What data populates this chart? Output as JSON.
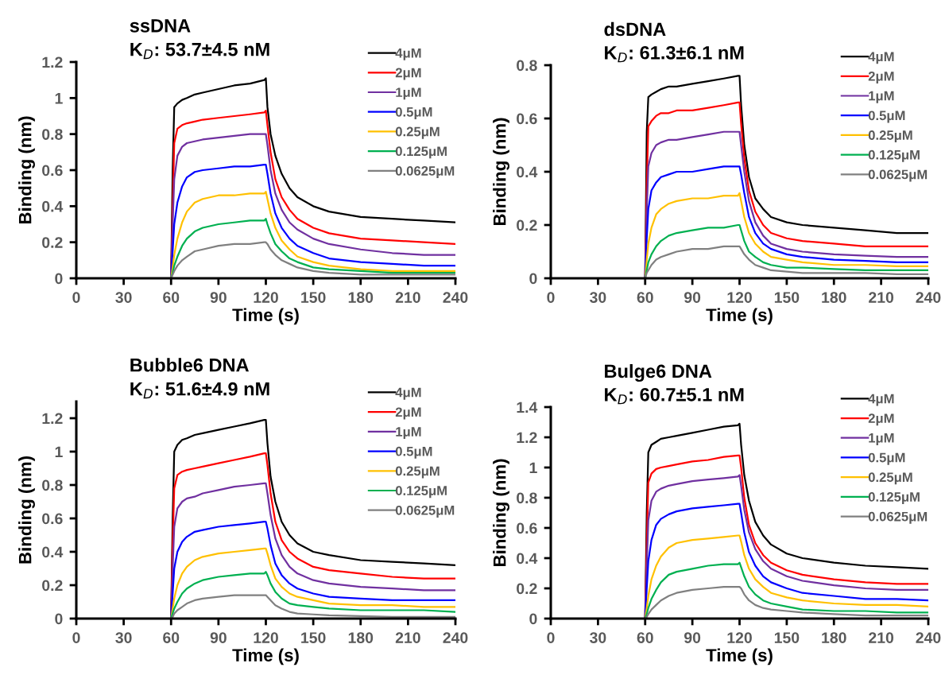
{
  "chart_data": [
    {
      "type": "line",
      "title": "ssDNA",
      "subtitle": "K$_{D}$: 53.7±4.5 nM",
      "xlabel": "Time (s)",
      "ylabel": "Binding (nm)",
      "legend": "top right",
      "grid": false,
      "x": [
        0,
        60,
        61,
        62,
        64,
        67,
        70,
        75,
        80,
        90,
        100,
        110,
        119,
        120,
        121,
        123,
        126,
        130,
        135,
        140,
        150,
        160,
        180,
        200,
        220,
        240
      ],
      "xlim": [
        0,
        240
      ],
      "xticks": [
        0,
        30,
        60,
        90,
        120,
        150,
        180,
        210,
        240
      ],
      "ylim": [
        0,
        1.2
      ],
      "yticks": [
        0,
        0.2,
        0.4,
        0.6,
        0.8,
        1,
        1.2
      ],
      "series": [
        {
          "name": "4μM",
          "color": "#000000",
          "values": [
            0,
            0,
            0.6,
            0.95,
            0.97,
            0.99,
            1.0,
            1.02,
            1.03,
            1.05,
            1.07,
            1.08,
            1.1,
            1.11,
            0.95,
            0.8,
            0.68,
            0.58,
            0.5,
            0.45,
            0.4,
            0.37,
            0.34,
            0.33,
            0.32,
            0.31
          ]
        },
        {
          "name": "2μM",
          "color": "#ff0000",
          "values": [
            0,
            0,
            0.4,
            0.75,
            0.83,
            0.85,
            0.86,
            0.87,
            0.88,
            0.89,
            0.9,
            0.91,
            0.92,
            0.93,
            0.85,
            0.7,
            0.55,
            0.45,
            0.38,
            0.33,
            0.28,
            0.25,
            0.22,
            0.21,
            0.2,
            0.19
          ]
        },
        {
          "name": "1μM",
          "color": "#7030a0",
          "values": [
            0,
            0,
            0.3,
            0.55,
            0.68,
            0.73,
            0.75,
            0.76,
            0.77,
            0.78,
            0.79,
            0.8,
            0.8,
            0.8,
            0.74,
            0.6,
            0.47,
            0.38,
            0.31,
            0.27,
            0.22,
            0.19,
            0.16,
            0.14,
            0.13,
            0.13
          ]
        },
        {
          "name": "0.5μM",
          "color": "#0000ff",
          "values": [
            0,
            0,
            0.15,
            0.3,
            0.42,
            0.51,
            0.56,
            0.59,
            0.6,
            0.61,
            0.62,
            0.62,
            0.63,
            0.63,
            0.58,
            0.47,
            0.36,
            0.28,
            0.22,
            0.18,
            0.14,
            0.11,
            0.09,
            0.08,
            0.07,
            0.07
          ]
        },
        {
          "name": "0.25μM",
          "color": "#ffc000",
          "values": [
            0,
            0,
            0.06,
            0.13,
            0.22,
            0.31,
            0.37,
            0.42,
            0.44,
            0.46,
            0.46,
            0.47,
            0.47,
            0.48,
            0.44,
            0.36,
            0.28,
            0.21,
            0.16,
            0.12,
            0.09,
            0.07,
            0.05,
            0.04,
            0.04,
            0.04
          ]
        },
        {
          "name": "0.125μM",
          "color": "#00b050",
          "values": [
            0,
            0,
            0.03,
            0.07,
            0.12,
            0.18,
            0.22,
            0.26,
            0.28,
            0.3,
            0.31,
            0.32,
            0.32,
            0.33,
            0.3,
            0.25,
            0.19,
            0.15,
            0.11,
            0.09,
            0.06,
            0.05,
            0.04,
            0.03,
            0.03,
            0.03
          ]
        },
        {
          "name": "0.0625μM",
          "color": "#808080",
          "values": [
            0,
            0,
            0.02,
            0.04,
            0.07,
            0.1,
            0.12,
            0.15,
            0.16,
            0.18,
            0.19,
            0.19,
            0.2,
            0.2,
            0.19,
            0.16,
            0.13,
            0.1,
            0.08,
            0.06,
            0.04,
            0.03,
            0.02,
            0.02,
            0.02,
            0.02
          ]
        }
      ]
    },
    {
      "type": "line",
      "title": "dsDNA",
      "subtitle": "K$_{D}$: 61.3±6.1 nM",
      "xlabel": "Time (s)",
      "ylabel": "Binding (nm)",
      "legend": "top right",
      "grid": false,
      "x": [
        0,
        60,
        61,
        62,
        64,
        67,
        70,
        75,
        80,
        90,
        100,
        110,
        119,
        120,
        121,
        123,
        126,
        130,
        135,
        140,
        150,
        160,
        180,
        200,
        220,
        240
      ],
      "xlim": [
        0,
        240
      ],
      "xticks": [
        0,
        30,
        60,
        90,
        120,
        150,
        180,
        210,
        240
      ],
      "ylim": [
        0,
        0.8
      ],
      "yticks": [
        0,
        0.2,
        0.4,
        0.6,
        0.8
      ],
      "series": [
        {
          "name": "4μM",
          "color": "#000000",
          "values": [
            0,
            0,
            0.55,
            0.68,
            0.69,
            0.7,
            0.71,
            0.72,
            0.72,
            0.73,
            0.74,
            0.75,
            0.76,
            0.76,
            0.65,
            0.5,
            0.38,
            0.3,
            0.26,
            0.23,
            0.21,
            0.2,
            0.19,
            0.18,
            0.17,
            0.17
          ]
        },
        {
          "name": "2μM",
          "color": "#ff0000",
          "values": [
            0,
            0,
            0.35,
            0.57,
            0.59,
            0.61,
            0.62,
            0.62,
            0.63,
            0.63,
            0.64,
            0.65,
            0.66,
            0.66,
            0.58,
            0.45,
            0.33,
            0.25,
            0.2,
            0.17,
            0.15,
            0.14,
            0.13,
            0.12,
            0.12,
            0.12
          ]
        },
        {
          "name": "1μM",
          "color": "#7030a0",
          "values": [
            0,
            0,
            0.25,
            0.42,
            0.47,
            0.5,
            0.51,
            0.52,
            0.52,
            0.53,
            0.54,
            0.55,
            0.55,
            0.55,
            0.5,
            0.4,
            0.29,
            0.21,
            0.16,
            0.13,
            0.11,
            0.1,
            0.09,
            0.085,
            0.08,
            0.08
          ]
        },
        {
          "name": "0.5μM",
          "color": "#0000ff",
          "values": [
            0,
            0,
            0.15,
            0.26,
            0.33,
            0.36,
            0.38,
            0.39,
            0.4,
            0.4,
            0.41,
            0.42,
            0.42,
            0.42,
            0.39,
            0.32,
            0.23,
            0.17,
            0.13,
            0.11,
            0.09,
            0.08,
            0.07,
            0.065,
            0.06,
            0.06
          ]
        },
        {
          "name": "0.25μM",
          "color": "#ffc000",
          "values": [
            0,
            0,
            0.07,
            0.13,
            0.19,
            0.24,
            0.26,
            0.28,
            0.29,
            0.3,
            0.3,
            0.31,
            0.31,
            0.32,
            0.29,
            0.23,
            0.17,
            0.13,
            0.1,
            0.08,
            0.07,
            0.06,
            0.05,
            0.05,
            0.045,
            0.045
          ]
        },
        {
          "name": "0.125μM",
          "color": "#00b050",
          "values": [
            0,
            0,
            0.03,
            0.06,
            0.09,
            0.12,
            0.14,
            0.16,
            0.17,
            0.18,
            0.19,
            0.19,
            0.2,
            0.2,
            0.18,
            0.14,
            0.1,
            0.08,
            0.06,
            0.05,
            0.04,
            0.04,
            0.035,
            0.03,
            0.03,
            0.03
          ]
        },
        {
          "name": "0.0625μM",
          "color": "#808080",
          "values": [
            0,
            0,
            0.02,
            0.03,
            0.05,
            0.07,
            0.08,
            0.09,
            0.1,
            0.11,
            0.11,
            0.12,
            0.12,
            0.12,
            0.11,
            0.09,
            0.07,
            0.05,
            0.04,
            0.03,
            0.025,
            0.02,
            0.02,
            0.02,
            0.015,
            0.015
          ]
        }
      ]
    },
    {
      "type": "line",
      "title": "Bubble6 DNA",
      "subtitle": "K$_{D}$: 51.6±4.9 nM",
      "xlabel": "Time (s)",
      "ylabel": "Binding (nm)",
      "legend": "top right",
      "grid": false,
      "x": [
        0,
        60,
        61,
        62,
        64,
        67,
        70,
        75,
        80,
        90,
        100,
        110,
        119,
        120,
        121,
        123,
        126,
        130,
        135,
        140,
        150,
        160,
        180,
        200,
        220,
        240
      ],
      "xlim": [
        0,
        240
      ],
      "xticks": [
        0,
        30,
        60,
        90,
        120,
        150,
        180,
        210,
        240
      ],
      "ylim": [
        0,
        1.3
      ],
      "yticks": [
        0,
        0.2,
        0.4,
        0.6,
        0.8,
        1,
        1.2
      ],
      "series": [
        {
          "name": "4μM",
          "color": "#000000",
          "values": [
            0,
            0,
            0.6,
            1.0,
            1.04,
            1.07,
            1.08,
            1.1,
            1.11,
            1.13,
            1.15,
            1.17,
            1.19,
            1.19,
            1.05,
            0.85,
            0.7,
            0.58,
            0.5,
            0.45,
            0.4,
            0.38,
            0.35,
            0.34,
            0.33,
            0.32
          ]
        },
        {
          "name": "2μM",
          "color": "#ff0000",
          "values": [
            0,
            0,
            0.45,
            0.78,
            0.86,
            0.88,
            0.89,
            0.9,
            0.91,
            0.93,
            0.95,
            0.97,
            0.99,
            0.99,
            0.92,
            0.75,
            0.58,
            0.47,
            0.4,
            0.36,
            0.31,
            0.29,
            0.27,
            0.25,
            0.24,
            0.24
          ]
        },
        {
          "name": "1μM",
          "color": "#7030a0",
          "values": [
            0,
            0,
            0.3,
            0.55,
            0.66,
            0.7,
            0.72,
            0.73,
            0.75,
            0.77,
            0.79,
            0.8,
            0.81,
            0.81,
            0.75,
            0.62,
            0.48,
            0.38,
            0.31,
            0.27,
            0.23,
            0.21,
            0.19,
            0.18,
            0.17,
            0.17
          ]
        },
        {
          "name": "0.5μM",
          "color": "#0000ff",
          "values": [
            0,
            0,
            0.15,
            0.3,
            0.4,
            0.46,
            0.49,
            0.52,
            0.53,
            0.55,
            0.56,
            0.57,
            0.58,
            0.58,
            0.54,
            0.44,
            0.33,
            0.26,
            0.21,
            0.18,
            0.15,
            0.13,
            0.12,
            0.11,
            0.11,
            0.11
          ]
        },
        {
          "name": "0.25μM",
          "color": "#ffc000",
          "values": [
            0,
            0,
            0.06,
            0.12,
            0.2,
            0.27,
            0.31,
            0.35,
            0.37,
            0.39,
            0.4,
            0.41,
            0.42,
            0.42,
            0.39,
            0.32,
            0.24,
            0.19,
            0.15,
            0.13,
            0.11,
            0.09,
            0.08,
            0.08,
            0.07,
            0.07
          ]
        },
        {
          "name": "0.125μM",
          "color": "#00b050",
          "values": [
            0,
            0,
            0.03,
            0.06,
            0.1,
            0.15,
            0.18,
            0.21,
            0.23,
            0.25,
            0.26,
            0.27,
            0.27,
            0.28,
            0.26,
            0.21,
            0.16,
            0.12,
            0.09,
            0.08,
            0.07,
            0.06,
            0.05,
            0.05,
            0.05,
            0.04
          ]
        },
        {
          "name": "0.0625μM",
          "color": "#808080",
          "values": [
            0,
            0,
            0.01,
            0.03,
            0.05,
            0.07,
            0.09,
            0.11,
            0.12,
            0.13,
            0.14,
            0.14,
            0.14,
            0.14,
            0.13,
            0.11,
            0.08,
            0.06,
            0.04,
            0.03,
            0.025,
            0.02,
            0.015,
            0.01,
            0.01,
            0.01
          ]
        }
      ]
    },
    {
      "type": "line",
      "title": "Bulge6 DNA",
      "subtitle": "K$_{D}$: 60.7±5.1 nM",
      "xlabel": "Time (s)",
      "ylabel": "Binding (nm)",
      "legend": "top right",
      "grid": false,
      "x": [
        0,
        60,
        61,
        62,
        64,
        67,
        70,
        75,
        80,
        90,
        100,
        110,
        119,
        120,
        121,
        123,
        126,
        130,
        135,
        140,
        150,
        160,
        180,
        200,
        220,
        240
      ],
      "xlim": [
        0,
        240
      ],
      "xticks": [
        0,
        30,
        60,
        90,
        120,
        150,
        180,
        210,
        240
      ],
      "ylim": [
        0,
        1.4
      ],
      "yticks": [
        0,
        0.2,
        0.4,
        0.6,
        0.8,
        1,
        1.2,
        1.4
      ],
      "series": [
        {
          "name": "4μM",
          "color": "#000000",
          "values": [
            0,
            0,
            0.7,
            1.1,
            1.15,
            1.17,
            1.19,
            1.2,
            1.21,
            1.23,
            1.25,
            1.27,
            1.28,
            1.29,
            1.15,
            0.95,
            0.78,
            0.64,
            0.55,
            0.49,
            0.43,
            0.4,
            0.37,
            0.35,
            0.34,
            0.33
          ]
        },
        {
          "name": "2μM",
          "color": "#ff0000",
          "values": [
            0,
            0,
            0.5,
            0.9,
            0.96,
            0.99,
            1.0,
            1.01,
            1.02,
            1.04,
            1.05,
            1.07,
            1.08,
            1.08,
            1.0,
            0.8,
            0.62,
            0.5,
            0.42,
            0.37,
            0.32,
            0.29,
            0.26,
            0.24,
            0.23,
            0.23
          ]
        },
        {
          "name": "1μM",
          "color": "#7030a0",
          "values": [
            0,
            0,
            0.35,
            0.65,
            0.78,
            0.84,
            0.86,
            0.88,
            0.89,
            0.91,
            0.92,
            0.93,
            0.94,
            0.95,
            0.88,
            0.72,
            0.57,
            0.46,
            0.38,
            0.33,
            0.28,
            0.25,
            0.22,
            0.2,
            0.19,
            0.19
          ]
        },
        {
          "name": "0.5μM",
          "color": "#0000ff",
          "values": [
            0,
            0,
            0.2,
            0.38,
            0.52,
            0.62,
            0.66,
            0.69,
            0.71,
            0.73,
            0.74,
            0.75,
            0.76,
            0.76,
            0.7,
            0.57,
            0.44,
            0.35,
            0.28,
            0.24,
            0.2,
            0.17,
            0.15,
            0.13,
            0.13,
            0.12
          ]
        },
        {
          "name": "0.25μM",
          "color": "#ffc000",
          "values": [
            0,
            0,
            0.07,
            0.15,
            0.26,
            0.35,
            0.41,
            0.47,
            0.5,
            0.52,
            0.53,
            0.54,
            0.55,
            0.55,
            0.51,
            0.42,
            0.33,
            0.26,
            0.21,
            0.17,
            0.14,
            0.12,
            0.1,
            0.09,
            0.09,
            0.08
          ]
        },
        {
          "name": "0.125μM",
          "color": "#00b050",
          "values": [
            0,
            0,
            0.03,
            0.07,
            0.13,
            0.19,
            0.24,
            0.29,
            0.31,
            0.33,
            0.35,
            0.36,
            0.36,
            0.37,
            0.34,
            0.28,
            0.21,
            0.16,
            0.12,
            0.1,
            0.08,
            0.06,
            0.05,
            0.05,
            0.04,
            0.04
          ]
        },
        {
          "name": "0.0625μM",
          "color": "#808080",
          "values": [
            0,
            0,
            0.01,
            0.03,
            0.06,
            0.09,
            0.12,
            0.15,
            0.17,
            0.19,
            0.2,
            0.21,
            0.21,
            0.21,
            0.2,
            0.16,
            0.12,
            0.09,
            0.07,
            0.06,
            0.05,
            0.04,
            0.03,
            0.02,
            0.02,
            0.02
          ]
        }
      ]
    }
  ]
}
